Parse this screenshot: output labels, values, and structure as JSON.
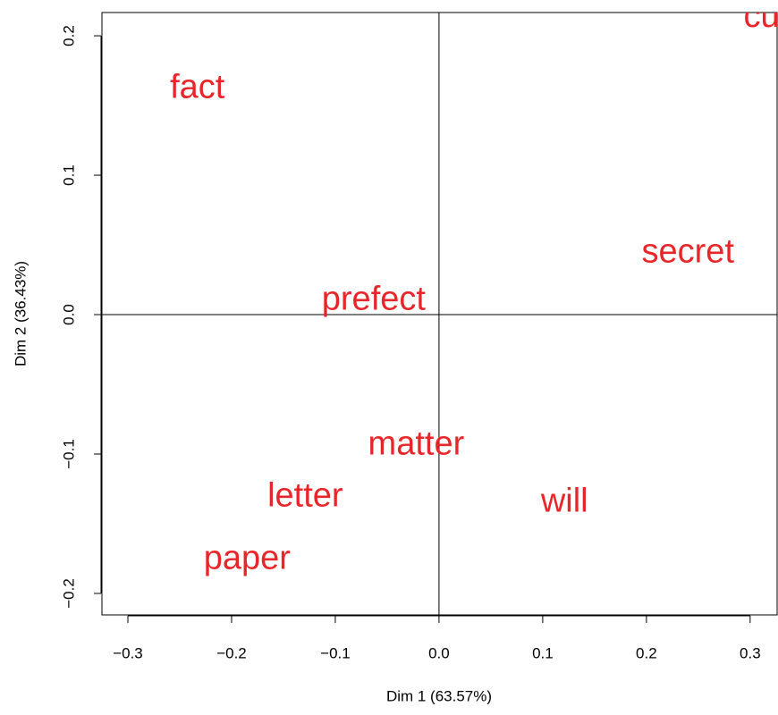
{
  "chart_data": {
    "type": "scatter",
    "xlabel": "Dim 1 (63.57%)",
    "ylabel": "Dim 2 (36.43%)",
    "labels": [
      "fact",
      "secret",
      "prefect",
      "matter",
      "letter",
      "will",
      "paper",
      "cu"
    ],
    "x": [
      -0.233,
      0.24,
      -0.063,
      -0.022,
      -0.129,
      0.121,
      -0.185,
      0.311
    ],
    "y": [
      0.162,
      0.044,
      0.01,
      -0.094,
      -0.131,
      -0.135,
      -0.176,
      0.213
    ],
    "color": "#e8262a",
    "xlim": [
      -0.325,
      0.326
    ],
    "ylim": [
      -0.2154,
      0.2167
    ],
    "xticks": [
      {
        "value": -0.3,
        "label": "−0.3"
      },
      {
        "value": -0.2,
        "label": "−0.2"
      },
      {
        "value": -0.1,
        "label": "−0.1"
      },
      {
        "value": 0,
        "label": "0.0"
      },
      0.1,
      0.2,
      0.3
    ],
    "yticks": [
      {
        "value": -0.2,
        "label": "−0.2"
      },
      {
        "value": -0.1,
        "label": "−0.1"
      },
      {
        "value": 0,
        "label": "0.0"
      },
      0.1,
      0.2
    ],
    "hline": 0,
    "vline": 0
  }
}
